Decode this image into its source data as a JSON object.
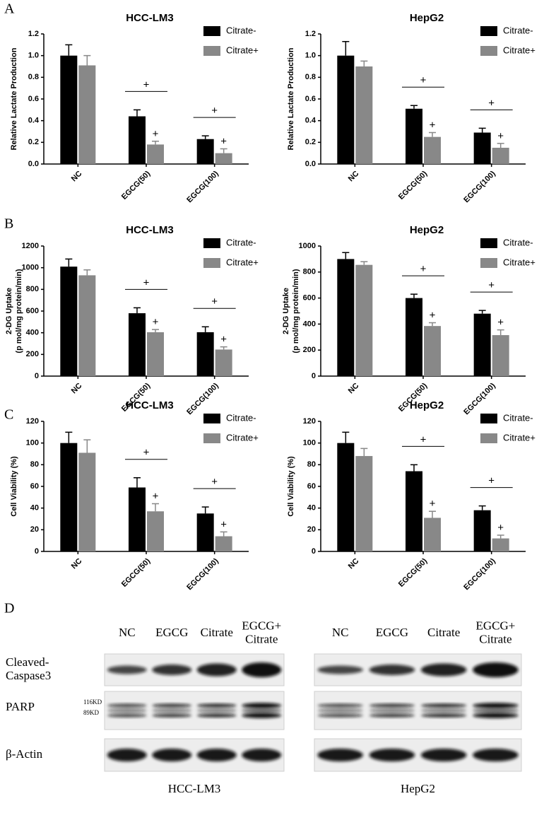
{
  "panel_labels": [
    "A",
    "B",
    "C",
    "D"
  ],
  "chart_data": [
    {
      "type": "bar",
      "title": "HCC-LM3",
      "ylabel": [
        "Relative Lactate Production"
      ],
      "categories": [
        "NC",
        "EGCG(50)",
        "EGCG(100)"
      ],
      "series": [
        {
          "name": "Citrate-",
          "color": "#000000",
          "values": [
            1.0,
            0.44,
            0.23
          ],
          "errors": [
            0.1,
            0.06,
            0.03
          ],
          "value_marks": [
            null,
            null,
            null
          ]
        },
        {
          "name": "Citrate+",
          "color": "#888888",
          "values": [
            0.91,
            0.18,
            0.1
          ],
          "errors": [
            0.09,
            0.03,
            0.04
          ],
          "value_marks": [
            null,
            "+",
            "+"
          ]
        }
      ],
      "bracket_marks": [
        null,
        "+",
        "+"
      ],
      "ylim": [
        0,
        1.2
      ],
      "yticks": [
        {
          "value": 0,
          "label": "0.0"
        },
        0.2,
        0.4,
        0.6,
        0.8,
        {
          "value": 1,
          "label": "1.0"
        },
        1.2
      ],
      "legend": "upper right"
    },
    {
      "type": "bar",
      "title": "HepG2",
      "ylabel": [
        "Relative Lactate Production"
      ],
      "categories": [
        "NC",
        "EGCG(50)",
        "EGCG(100)"
      ],
      "series": [
        {
          "name": "Citrate-",
          "color": "#000000",
          "values": [
            1.0,
            0.51,
            0.29
          ],
          "errors": [
            0.13,
            0.03,
            0.04
          ],
          "value_marks": [
            null,
            null,
            null
          ]
        },
        {
          "name": "Citrate+",
          "color": "#888888",
          "values": [
            0.9,
            0.25,
            0.15
          ],
          "errors": [
            0.05,
            0.04,
            0.04
          ],
          "value_marks": [
            null,
            "+",
            "+"
          ]
        }
      ],
      "bracket_marks": [
        null,
        "+",
        "+"
      ],
      "ylim": [
        0,
        1.2
      ],
      "yticks": [
        {
          "value": 0,
          "label": "0.0"
        },
        0.2,
        0.4,
        0.6,
        0.8,
        {
          "value": 1,
          "label": "1.0"
        },
        1.2
      ],
      "legend": "upper right"
    },
    {
      "type": "bar",
      "title": "HCC-LM3",
      "ylabel": [
        "2-DG Uptake",
        "(p mol/mg protein/min)"
      ],
      "categories": [
        "NC",
        "EGCG(50)",
        "EGCG(100)"
      ],
      "series": [
        {
          "name": "Citrate-",
          "color": "#000000",
          "values": [
            1010,
            580,
            405
          ],
          "errors": [
            70,
            50,
            50
          ],
          "value_marks": [
            null,
            null,
            null
          ]
        },
        {
          "name": "Citrate+",
          "color": "#888888",
          "values": [
            930,
            405,
            245
          ],
          "errors": [
            50,
            25,
            25
          ],
          "value_marks": [
            null,
            "+",
            "+"
          ]
        }
      ],
      "bracket_marks": [
        null,
        "+",
        "+"
      ],
      "ylim": [
        0,
        1200
      ],
      "yticks": [
        0,
        200,
        400,
        600,
        800,
        1000,
        1200
      ],
      "legend": "upper right"
    },
    {
      "type": "bar",
      "title": "HepG2",
      "ylabel": [
        "2-DG Uptake",
        "(p mol/mg protein/min)"
      ],
      "categories": [
        "NC",
        "EGCG(50)",
        "EGCG(100)"
      ],
      "series": [
        {
          "name": "Citrate-",
          "color": "#000000",
          "values": [
            900,
            600,
            480
          ],
          "errors": [
            50,
            30,
            25
          ],
          "value_marks": [
            null,
            null,
            null
          ]
        },
        {
          "name": "Citrate+",
          "color": "#888888",
          "values": [
            855,
            385,
            315
          ],
          "errors": [
            25,
            25,
            40
          ],
          "value_marks": [
            null,
            "+",
            "+"
          ]
        }
      ],
      "bracket_marks": [
        null,
        "+",
        "+"
      ],
      "ylim": [
        0,
        1000
      ],
      "yticks": [
        0,
        200,
        400,
        600,
        800,
        1000
      ],
      "legend": "upper right"
    },
    {
      "type": "bar",
      "title": "HCC-LM3",
      "ylabel": [
        "Cell Viability (%)"
      ],
      "categories": [
        "NC",
        "EGCG(50)",
        "EGCG(100)"
      ],
      "series": [
        {
          "name": "Citrate-",
          "color": "#000000",
          "values": [
            100,
            59,
            35
          ],
          "errors": [
            10,
            9,
            6
          ],
          "value_marks": [
            null,
            null,
            null
          ]
        },
        {
          "name": "Citrate+",
          "color": "#888888",
          "values": [
            91,
            37,
            14
          ],
          "errors": [
            12,
            7,
            4
          ],
          "value_marks": [
            null,
            "+",
            "+"
          ]
        }
      ],
      "bracket_marks": [
        null,
        "+",
        "+"
      ],
      "ylim": [
        0,
        120
      ],
      "yticks": [
        0,
        20,
        40,
        60,
        80,
        100,
        120
      ],
      "legend": "upper right"
    },
    {
      "type": "bar",
      "title": "HepG2",
      "ylabel": [
        "Cell Viability (%)"
      ],
      "categories": [
        "NC",
        "EGCG(50)",
        "EGCG(100)"
      ],
      "series": [
        {
          "name": "Citrate-",
          "color": "#000000",
          "values": [
            100,
            74,
            38
          ],
          "errors": [
            10,
            6,
            4
          ],
          "value_marks": [
            null,
            null,
            null
          ]
        },
        {
          "name": "Citrate+",
          "color": "#888888",
          "values": [
            88,
            31,
            12
          ],
          "errors": [
            7,
            6,
            3
          ],
          "value_marks": [
            null,
            "+",
            "+"
          ]
        }
      ],
      "bracket_marks": [
        null,
        "+",
        "+"
      ],
      "ylim": [
        0,
        120
      ],
      "yticks": [
        0,
        20,
        40,
        60,
        80,
        100,
        120
      ],
      "legend": "upper right"
    }
  ],
  "blot": {
    "rows": [
      [
        "Cleaved-",
        "Caspase3"
      ],
      [
        "PARP"
      ],
      [
        "β-Actin"
      ]
    ],
    "parp_markers": [
      "116KD",
      "89KD"
    ],
    "panels": [
      {
        "cell_line": "HCC-LM3",
        "columns": [
          [
            "NC"
          ],
          [
            "EGCG"
          ],
          [
            "Citrate"
          ],
          [
            "EGCG+",
            "Citrate"
          ]
        ]
      },
      {
        "cell_line": "HepG2",
        "columns": [
          [
            "NC"
          ],
          [
            "EGCG"
          ],
          [
            "Citrate"
          ],
          [
            "EGCG+",
            "Citrate"
          ]
        ]
      }
    ]
  }
}
